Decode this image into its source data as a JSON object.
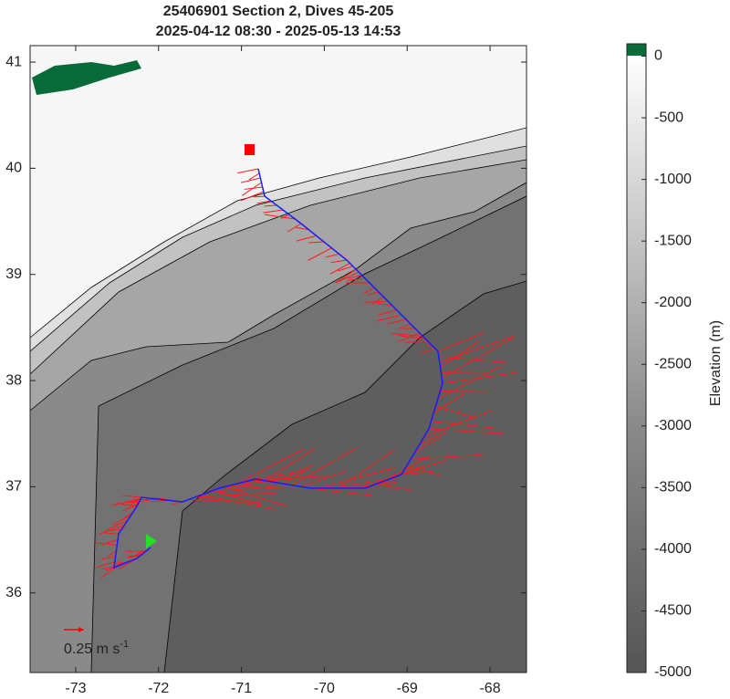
{
  "title": [
    "25406901 Section 2, Dives 45-205",
    "2025-04-12 08:30 - 2025-05-13 14:53"
  ],
  "map": {
    "xlim": [
      -73.55,
      -67.56
    ],
    "ylim": [
      35.25,
      41.155
    ],
    "xticks": [
      -73,
      -72,
      -71,
      -70,
      -69,
      -68
    ],
    "yticks": [
      36,
      37,
      38,
      39,
      40,
      41
    ]
  },
  "colorbar": {
    "label": "Elevation (m)",
    "lim": [
      -5000,
      100
    ],
    "ticks": [
      0,
      -500,
      -1000,
      -1500,
      -2000,
      -2500,
      -3000,
      -3500,
      -4000,
      -4500,
      -5000
    ]
  },
  "scale_label": {
    "text": "0.25 m s",
    "sup": "-1"
  }
}
